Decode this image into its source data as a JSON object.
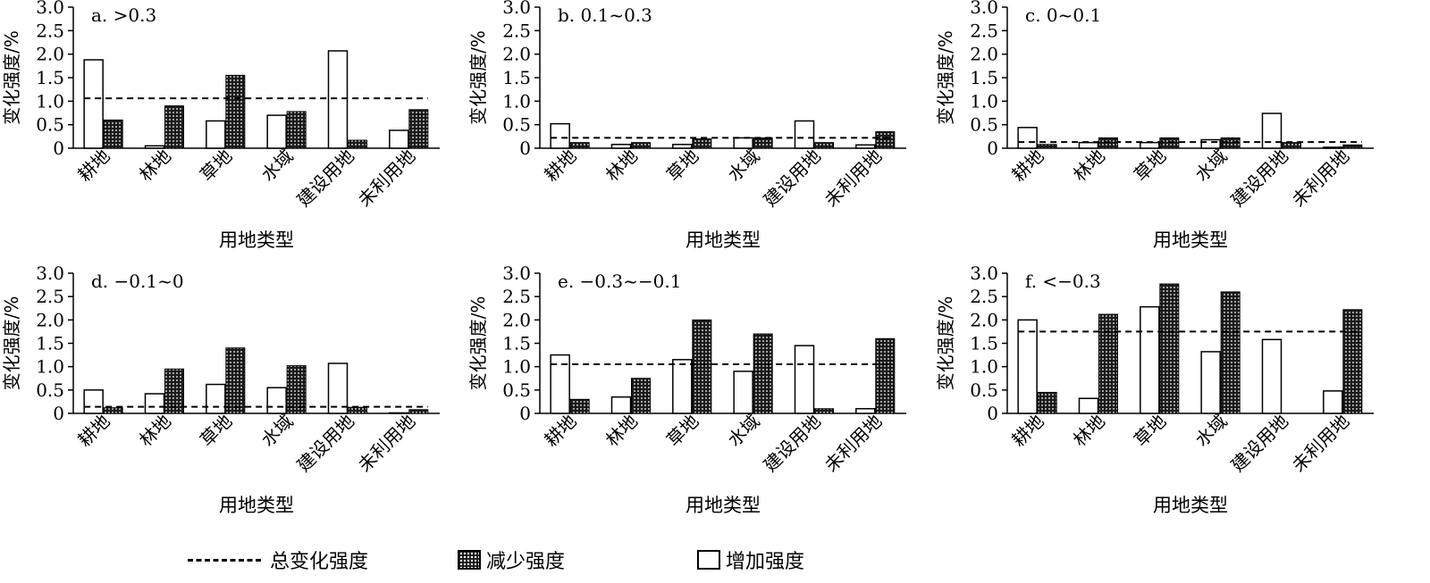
{
  "legend": {
    "total": "总变化强度",
    "decrease": "减少强度",
    "increase": "增加强度"
  },
  "chart_data": [
    {
      "type": "bar",
      "title": "a. >0.3",
      "xlabel": "用地类型",
      "ylabel": "变化强度/%",
      "ylim": [
        0,
        3.0
      ],
      "yticks": [
        "0",
        "0.5",
        "1.0",
        "1.5",
        "2.0",
        "2.5",
        "3.0"
      ],
      "categories": [
        "耕地",
        "林地",
        "草地",
        "水域",
        "建设用地",
        "未利用地"
      ],
      "series": [
        {
          "name": "增加强度",
          "values": [
            1.88,
            0.05,
            0.58,
            0.7,
            2.07,
            0.38
          ]
        },
        {
          "name": "减少强度",
          "values": [
            0.6,
            0.9,
            1.55,
            0.78,
            0.17,
            0.82
          ]
        }
      ],
      "total": 1.06
    },
    {
      "type": "bar",
      "title": "b. 0.1~0.3",
      "xlabel": "用地类型",
      "ylabel": "变化强度/%",
      "ylim": [
        0,
        3.0
      ],
      "yticks": [
        "0",
        "0.5",
        "1.0",
        "1.5",
        "2.0",
        "2.5",
        "3.0"
      ],
      "categories": [
        "耕地",
        "林地",
        "草地",
        "水域",
        "建设用地",
        "未利用地"
      ],
      "series": [
        {
          "name": "增加强度",
          "values": [
            0.52,
            0.08,
            0.08,
            0.22,
            0.58,
            0.07
          ]
        },
        {
          "name": "减少强度",
          "values": [
            0.12,
            0.12,
            0.2,
            0.22,
            0.12,
            0.35
          ]
        }
      ],
      "total": 0.22
    },
    {
      "type": "bar",
      "title": "c. 0~0.1",
      "xlabel": "用地类型",
      "ylabel": "变化强度/%",
      "ylim": [
        0,
        3.0
      ],
      "yticks": [
        "0",
        "0.5",
        "1.0",
        "1.5",
        "2.0",
        "2.5",
        "3.0"
      ],
      "categories": [
        "耕地",
        "林地",
        "草地",
        "水域",
        "建设用地",
        "未利用地"
      ],
      "series": [
        {
          "name": "增加强度",
          "values": [
            0.44,
            0.12,
            0.12,
            0.18,
            0.74,
            0.02
          ]
        },
        {
          "name": "减少强度",
          "values": [
            0.08,
            0.22,
            0.22,
            0.22,
            0.12,
            0.07
          ]
        }
      ],
      "total": 0.13
    },
    {
      "type": "bar",
      "title": "d. −0.1~0",
      "xlabel": "用地类型",
      "ylabel": "变化强度/%",
      "ylim": [
        0,
        3.0
      ],
      "yticks": [
        "0",
        "0.5",
        "1.0",
        "1.5",
        "2.0",
        "2.5",
        "3.0"
      ],
      "categories": [
        "耕地",
        "林地",
        "草地",
        "水域",
        "建设用地",
        "未利用地"
      ],
      "series": [
        {
          "name": "增加强度",
          "values": [
            0.5,
            0.42,
            0.62,
            0.55,
            1.07,
            0.01
          ]
        },
        {
          "name": "减少强度",
          "values": [
            0.12,
            0.95,
            1.4,
            1.02,
            0.13,
            0.08
          ]
        }
      ],
      "total": 0.14
    },
    {
      "type": "bar",
      "title": "e. −0.3~−0.1",
      "xlabel": "用地类型",
      "ylabel": "变化强度/%",
      "ylim": [
        0,
        3.0
      ],
      "yticks": [
        "0",
        "0.5",
        "1.0",
        "1.5",
        "2.0",
        "2.5",
        "3.0"
      ],
      "categories": [
        "耕地",
        "林地",
        "草地",
        "水域",
        "建设用地",
        "未利用地"
      ],
      "series": [
        {
          "name": "增加强度",
          "values": [
            1.25,
            0.35,
            1.15,
            0.9,
            1.45,
            0.1
          ]
        },
        {
          "name": "减少强度",
          "values": [
            0.3,
            0.75,
            2.0,
            1.7,
            0.1,
            1.6
          ]
        }
      ],
      "total": 1.05
    },
    {
      "type": "bar",
      "title": "f. <−0.3",
      "xlabel": "用地类型",
      "ylabel": "变化强度/%",
      "ylim": [
        0,
        3.0
      ],
      "yticks": [
        "0",
        "0.5",
        "1.0",
        "1.5",
        "2.0",
        "2.5",
        "3.0"
      ],
      "categories": [
        "耕地",
        "林地",
        "草地",
        "水域",
        "建设用地",
        "未利用地"
      ],
      "series": [
        {
          "name": "增加强度",
          "values": [
            2.0,
            0.32,
            2.28,
            1.32,
            1.58,
            0.48
          ]
        },
        {
          "name": "减少强度",
          "values": [
            0.45,
            2.12,
            2.77,
            2.6,
            0.0,
            2.22
          ]
        }
      ],
      "total": 1.75
    }
  ]
}
